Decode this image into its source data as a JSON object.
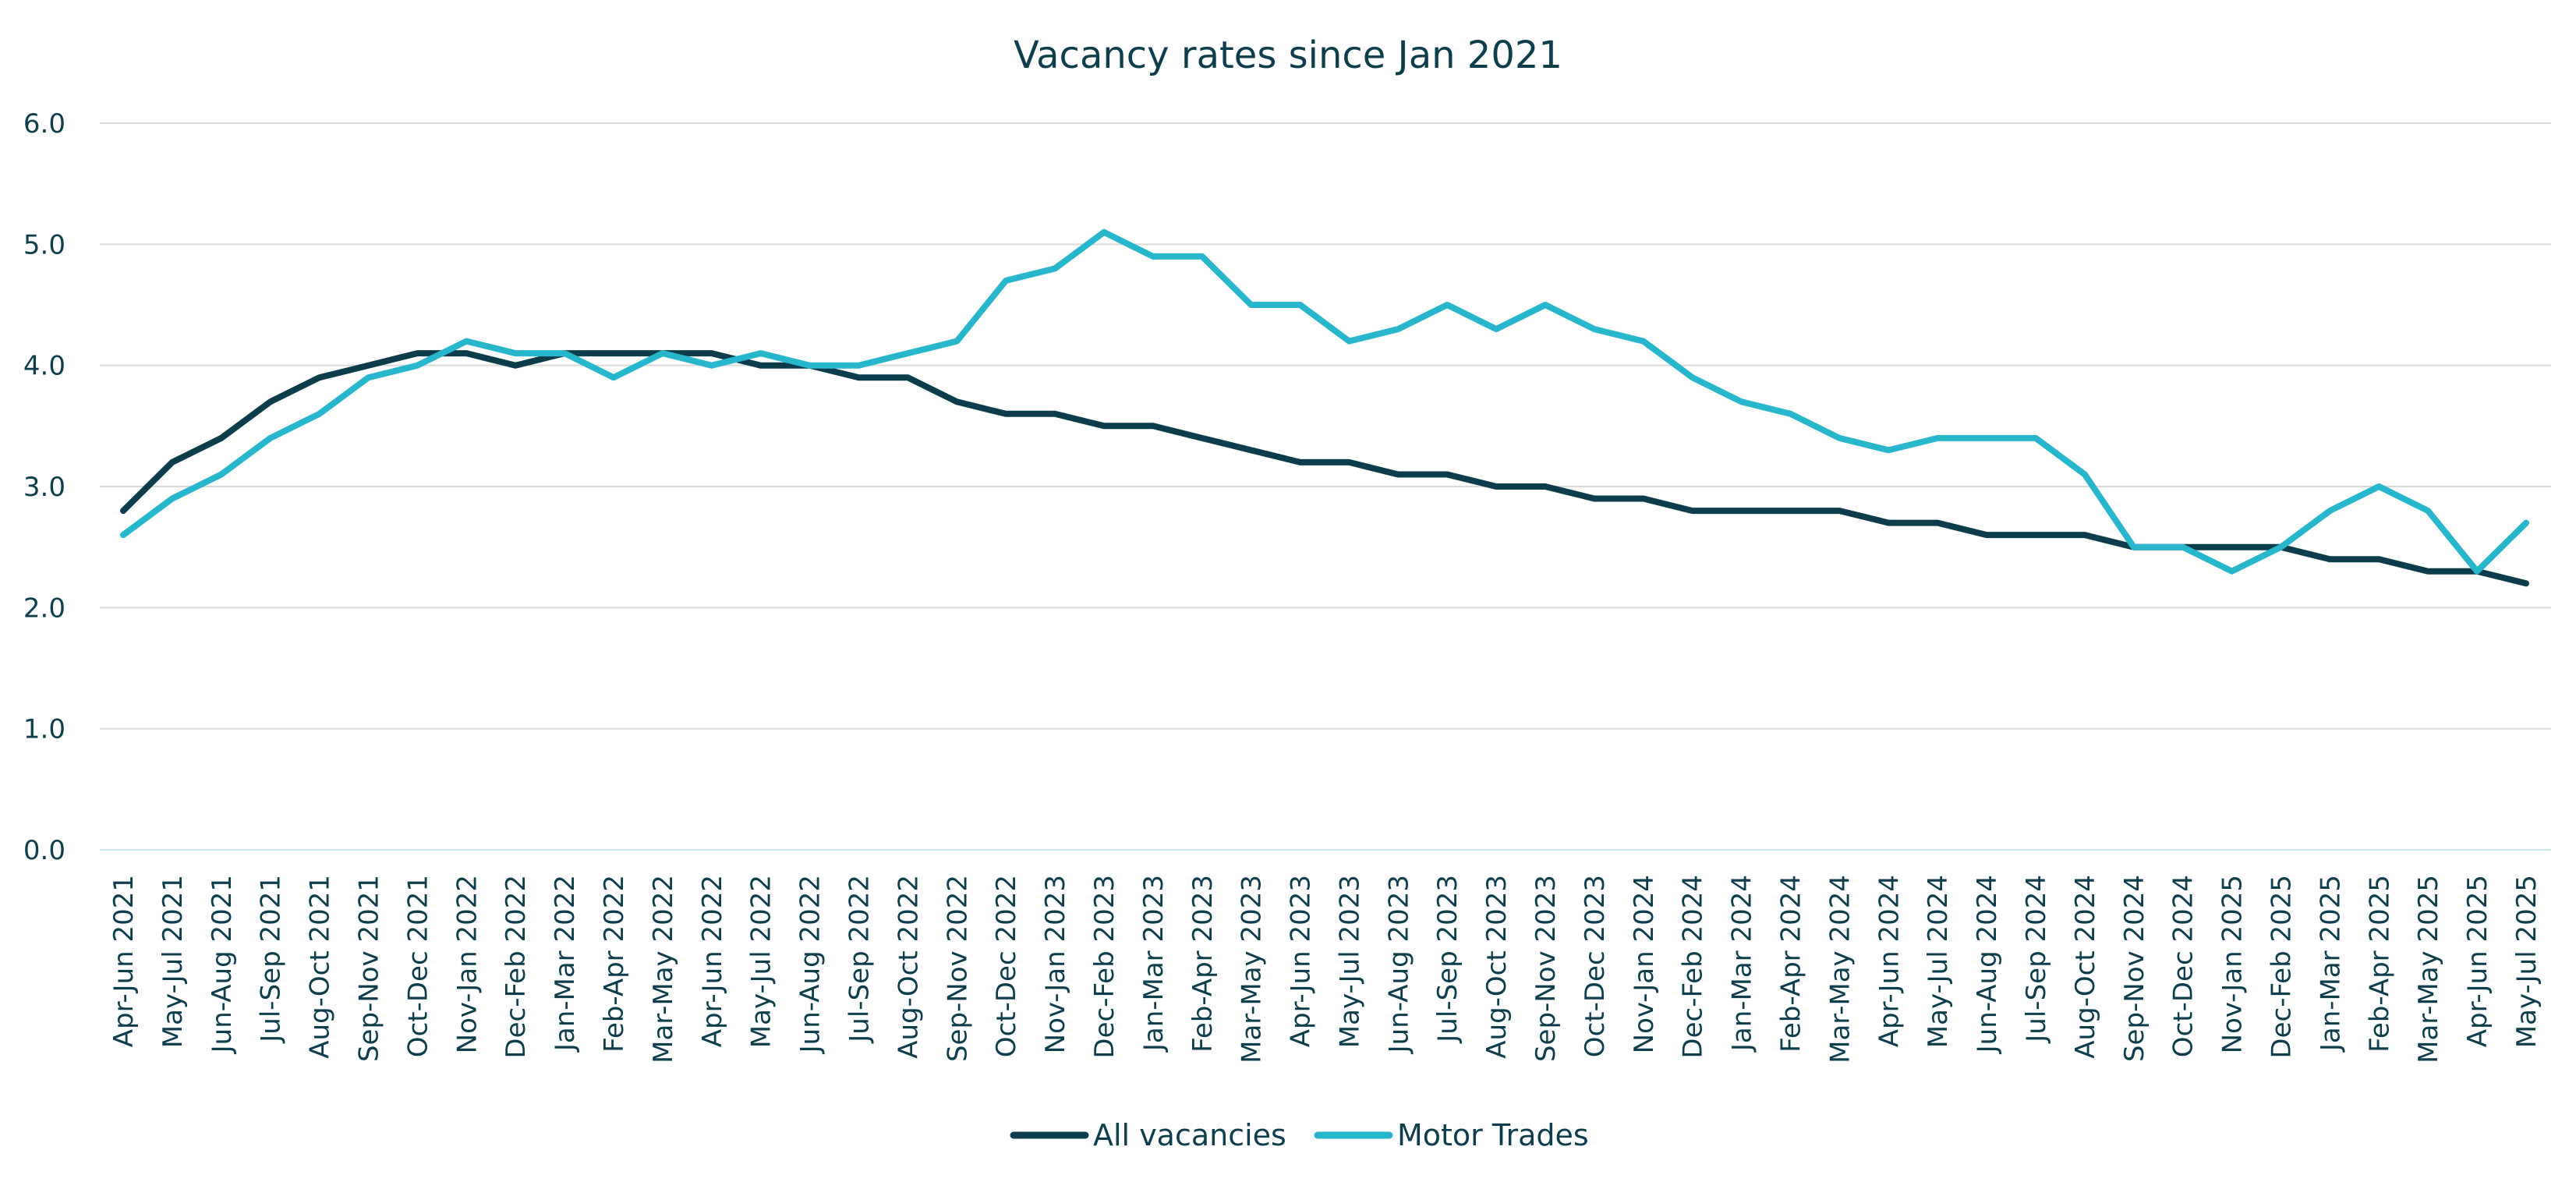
{
  "chart_data": {
    "type": "line",
    "title": "Vacancy rates since Jan 2021",
    "xlabel": "",
    "ylabel": "",
    "ylim": [
      0,
      6
    ],
    "yticks": [
      "0.0",
      "1.0",
      "2.0",
      "3.0",
      "4.0",
      "5.0",
      "6.0"
    ],
    "grid": true,
    "legend_position": "bottom",
    "categories": [
      "Apr-Jun 2021",
      "May-Jul 2021",
      "Jun-Aug 2021",
      "Jul-Sep 2021",
      "Aug-Oct 2021",
      "Sep-Nov 2021",
      "Oct-Dec 2021",
      "Nov-Jan 2022",
      "Dec-Feb 2022",
      "Jan-Mar 2022",
      "Feb-Apr 2022",
      "Mar-May 2022",
      "Apr-Jun 2022",
      "May-Jul 2022",
      "Jun-Aug 2022",
      "Jul-Sep 2022",
      "Aug-Oct 2022",
      "Sep-Nov 2022",
      "Oct-Dec 2022",
      "Nov-Jan 2023",
      "Dec-Feb 2023",
      "Jan-Mar 2023",
      "Feb-Apr 2023",
      "Mar-May 2023",
      "Apr-Jun 2023",
      "May-Jul 2023",
      "Jun-Aug 2023",
      "Jul-Sep 2023",
      "Aug-Oct 2023",
      "Sep-Nov 2023",
      "Oct-Dec 2023",
      "Nov-Jan 2024",
      "Dec-Feb 2024",
      "Jan-Mar 2024",
      "Feb-Apr 2024",
      "Mar-May 2024",
      "Apr-Jun 2024",
      "May-Jul 2024",
      "Jun-Aug 2024",
      "Jul-Sep 2024",
      "Aug-Oct 2024",
      "Sep-Nov 2024",
      "Oct-Dec 2024",
      "Nov-Jan 2025",
      "Dec-Feb 2025",
      "Jan-Mar 2025",
      "Feb-Apr 2025",
      "Mar-May 2025",
      "Apr-Jun 2025",
      "May-Jul 2025"
    ],
    "series": [
      {
        "name": "All vacancies",
        "color": "#0b3d4c",
        "values": [
          2.8,
          3.2,
          3.4,
          3.7,
          3.9,
          4.0,
          4.1,
          4.1,
          4.0,
          4.1,
          4.1,
          4.1,
          4.1,
          4.0,
          4.0,
          3.9,
          3.9,
          3.7,
          3.6,
          3.6,
          3.5,
          3.5,
          3.4,
          3.3,
          3.2,
          3.2,
          3.1,
          3.1,
          3.0,
          3.0,
          2.9,
          2.9,
          2.8,
          2.8,
          2.8,
          2.8,
          2.7,
          2.7,
          2.6,
          2.6,
          2.6,
          2.5,
          2.5,
          2.5,
          2.5,
          2.4,
          2.4,
          2.3,
          2.3,
          2.2
        ]
      },
      {
        "name": "Motor Trades",
        "color": "#28b6cc",
        "values": [
          2.6,
          2.9,
          3.1,
          3.4,
          3.6,
          3.9,
          4.0,
          4.2,
          4.1,
          4.1,
          3.9,
          4.1,
          4.0,
          4.1,
          4.0,
          4.0,
          4.1,
          4.2,
          4.7,
          4.8,
          5.1,
          4.9,
          4.9,
          4.5,
          4.5,
          4.2,
          4.3,
          4.5,
          4.3,
          4.5,
          4.3,
          4.2,
          3.9,
          3.7,
          3.6,
          3.4,
          3.3,
          3.4,
          3.4,
          3.4,
          3.1,
          2.5,
          2.5,
          2.3,
          2.5,
          2.8,
          3.0,
          2.8,
          2.3,
          2.7
        ]
      }
    ]
  }
}
